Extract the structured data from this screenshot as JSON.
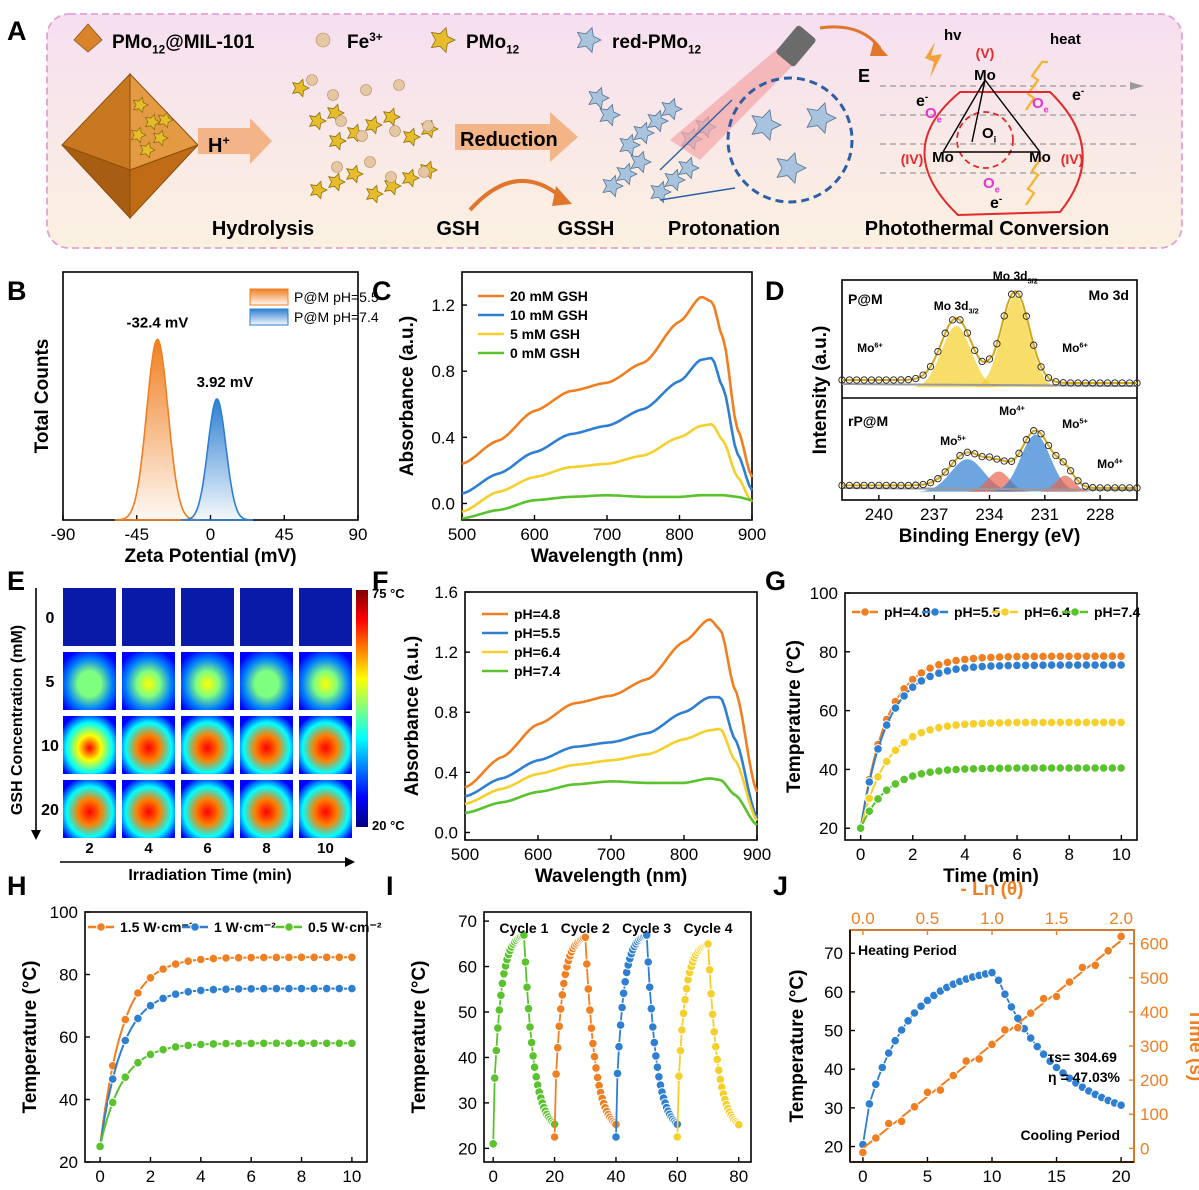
{
  "colors": {
    "orange": "#f07f21",
    "blue": "#2e7fd1",
    "yellow": "#f5cf2a",
    "green": "#59c22d",
    "gray": "#9a9a9a",
    "panel_a_bg": "#fbf1e0",
    "panel_a_border": "#e0a2d4",
    "red": "#e22a2a",
    "magenta": "#e632d2"
  },
  "panel_labels": [
    "A",
    "B",
    "C",
    "D",
    "E",
    "F",
    "G",
    "H",
    "I",
    "J"
  ],
  "panel_a": {
    "legend": [
      {
        "icon": "octahedron-icon",
        "base": "PMo",
        "sub": "12",
        "rest": "@MIL-101"
      },
      {
        "icon": "sphere-icon",
        "base": "Fe",
        "sup": "3+"
      },
      {
        "icon": "cluster-gold-icon",
        "base": "PMo",
        "sub": "12"
      },
      {
        "icon": "cluster-blue-icon",
        "base": "red-PMo",
        "sub": "12"
      }
    ],
    "arrow_h": {
      "base": "H",
      "sup": "+"
    },
    "reduction": "Reduction",
    "hv": "hv",
    "heat": "heat",
    "field": "E",
    "eminus": "e",
    "mo": "Mo",
    "oe": "O",
    "oe_sub": "e",
    "oi": "O",
    "oi_sub": "i",
    "ox5": "(V)",
    "ox4": "(IV)",
    "stages": [
      "Hydrolysis",
      "GSH",
      "GSSH",
      "Protonation",
      "Photothermal Conversion"
    ]
  },
  "chart_data": [
    {
      "panel": "B",
      "type": "area",
      "xlabel": "Zeta Potential (mV)",
      "ylabel": "Total Counts",
      "xlim": [
        -90,
        90
      ],
      "xticks": [
        -90,
        -45,
        0,
        45,
        90
      ],
      "series": [
        {
          "name": "P@M pH=5.5",
          "peak_label": "-32.4 mV",
          "center": -32.4,
          "width": 6.5,
          "height": 1.0,
          "color": "orange"
        },
        {
          "name": "P@M pH=7.4",
          "peak_label": "3.92 mV",
          "center": 3.92,
          "width": 5.5,
          "height": 0.67,
          "color": "blue"
        }
      ]
    },
    {
      "panel": "C",
      "type": "line",
      "xlabel": "Wavelength (nm)",
      "ylabel": "Absorbance (a.u.)",
      "xlim": [
        500,
        900
      ],
      "ylim": [
        -0.1,
        1.4
      ],
      "xticks": [
        500,
        600,
        700,
        800,
        900
      ],
      "yticks": [
        0.0,
        0.4,
        0.8,
        1.2
      ],
      "x": [
        500,
        550,
        600,
        650,
        700,
        750,
        800,
        830,
        845,
        860,
        880,
        900
      ],
      "series": [
        {
          "name": "20 mM GSH",
          "color": "orange",
          "values": [
            0.24,
            0.38,
            0.56,
            0.68,
            0.73,
            0.85,
            1.1,
            1.25,
            1.22,
            1.0,
            0.45,
            0.16
          ]
        },
        {
          "name": "10 mM GSH",
          "color": "blue",
          "values": [
            0.06,
            0.18,
            0.31,
            0.42,
            0.47,
            0.57,
            0.74,
            0.87,
            0.88,
            0.7,
            0.3,
            0.08
          ]
        },
        {
          "name": "5 mM GSH",
          "color": "yellow",
          "values": [
            -0.05,
            0.07,
            0.16,
            0.22,
            0.24,
            0.29,
            0.4,
            0.47,
            0.48,
            0.38,
            0.16,
            0.01
          ]
        },
        {
          "name": "0 mM GSH",
          "color": "green",
          "values": [
            -0.09,
            -0.04,
            0.02,
            0.04,
            0.05,
            0.04,
            0.04,
            0.05,
            0.05,
            0.05,
            0.04,
            0.02
          ]
        }
      ]
    },
    {
      "panel": "D",
      "type": "line",
      "xlabel": "Binding Energy (eV)",
      "ylabel": "Intensity (a.u.)",
      "xlim": [
        242,
        226
      ],
      "xticks": [
        240,
        237,
        234,
        231,
        228
      ],
      "title": "Mo 3d",
      "subpanels": [
        {
          "label": "P@M",
          "peaks": [
            {
              "name": "Mo 3d3/2",
              "center": 235.8,
              "sigma": 0.8,
              "height": 0.62
            },
            {
              "name": "Mo 3d5/2",
              "center": 232.6,
              "sigma": 0.75,
              "height": 0.92
            }
          ],
          "annotations": [
            "Mo6+",
            "Mo6+"
          ]
        },
        {
          "label": "rP@M",
          "peaks": [
            {
              "name": "Mo5+",
              "center": 235.2,
              "sigma": 0.9,
              "height": 0.4
            },
            {
              "name": "Mo4+",
              "center": 233.5,
              "sigma": 0.6,
              "height": 0.25
            },
            {
              "name": "Mo5+",
              "center": 231.5,
              "sigma": 0.8,
              "height": 0.7
            },
            {
              "name": "Mo4+",
              "center": 229.9,
              "sigma": 0.5,
              "height": 0.2
            }
          ],
          "annotations": [
            "Mo5+",
            "Mo4+",
            "Mo5+",
            "Mo4+"
          ]
        }
      ]
    },
    {
      "panel": "E",
      "type": "heatmap",
      "xlabel": "Irradiation Time (min)",
      "ylabel": "GSH Concentration (mM)",
      "x": [
        2,
        4,
        6,
        8,
        10
      ],
      "y": [
        0,
        5,
        10,
        20
      ],
      "scale": [
        "75 °C",
        "20 °C"
      ],
      "intensity": [
        [
          0,
          0,
          0,
          0,
          0
        ],
        [
          0.55,
          0.62,
          0.58,
          0.55,
          0.57
        ],
        [
          0.85,
          0.92,
          0.9,
          0.88,
          0.9
        ],
        [
          0.9,
          0.92,
          0.9,
          0.88,
          0.9
        ]
      ]
    },
    {
      "panel": "F",
      "type": "line",
      "xlabel": "Wavelength (nm)",
      "ylabel": "Absorbance (a.u.)",
      "xlim": [
        500,
        900
      ],
      "ylim": [
        -0.05,
        1.6
      ],
      "xticks": [
        500,
        600,
        700,
        800,
        900
      ],
      "yticks": [
        0.0,
        0.4,
        0.8,
        1.2,
        1.6
      ],
      "x": [
        500,
        550,
        600,
        650,
        700,
        750,
        800,
        835,
        850,
        870,
        900
      ],
      "series": [
        {
          "name": "pH=4.8",
          "color": "orange",
          "values": [
            0.3,
            0.5,
            0.72,
            0.86,
            0.91,
            1.02,
            1.27,
            1.42,
            1.35,
            0.95,
            0.27
          ]
        },
        {
          "name": "pH=5.5",
          "color": "blue",
          "values": [
            0.24,
            0.36,
            0.48,
            0.57,
            0.6,
            0.66,
            0.8,
            0.9,
            0.9,
            0.62,
            0.1
          ]
        },
        {
          "name": "pH=6.4",
          "color": "yellow",
          "values": [
            0.19,
            0.29,
            0.39,
            0.45,
            0.48,
            0.52,
            0.62,
            0.68,
            0.69,
            0.48,
            0.08
          ]
        },
        {
          "name": "pH=7.4",
          "color": "green",
          "values": [
            0.13,
            0.2,
            0.27,
            0.32,
            0.34,
            0.33,
            0.33,
            0.36,
            0.35,
            0.25,
            0.05
          ]
        }
      ]
    },
    {
      "panel": "G",
      "type": "line",
      "xlabel": "Time (min)",
      "ylabel": "Temperature (°C)",
      "xlim": [
        -0.6,
        10.6
      ],
      "ylim": [
        16,
        100
      ],
      "xticks": [
        0,
        2,
        4,
        6,
        8,
        10
      ],
      "yticks": [
        20,
        40,
        60,
        80,
        100
      ],
      "model": "rise",
      "tau": 1.0,
      "start": 20,
      "step": 0.333,
      "series": [
        {
          "name": "pH=4.8",
          "color": "orange",
          "plateau": 78.5
        },
        {
          "name": "pH=5.5",
          "color": "blue",
          "plateau": 75.5
        },
        {
          "name": "pH=6.4",
          "color": "yellow",
          "plateau": 56
        },
        {
          "name": "pH=7.4",
          "color": "green",
          "plateau": 40.5
        }
      ]
    },
    {
      "panel": "H",
      "type": "line",
      "xlabel": "Time (min)",
      "ylabel": "Temperature (°C)",
      "xlim": [
        -0.6,
        10.6
      ],
      "ylim": [
        20,
        100
      ],
      "xticks": [
        0,
        2,
        4,
        6,
        8,
        10
      ],
      "yticks": [
        20,
        40,
        60,
        80,
        100
      ],
      "model": "rise",
      "tau": 0.9,
      "start": 25,
      "step": 0.5,
      "series": [
        {
          "name": "1.5 W·cm⁻²",
          "color": "orange",
          "plateau": 85.5
        },
        {
          "name": "1 W·cm⁻²",
          "color": "blue",
          "plateau": 75.5
        },
        {
          "name": "0.5 W·cm⁻²",
          "color": "green",
          "plateau": 58
        }
      ]
    },
    {
      "panel": "I",
      "type": "line",
      "xlabel": "Time (min)",
      "ylabel": "Temperature (°C)",
      "xlim": [
        -3,
        84
      ],
      "ylim": [
        17,
        72
      ],
      "xticks": [
        0,
        20,
        40,
        60,
        80
      ],
      "yticks": [
        20,
        30,
        40,
        50,
        60,
        70
      ],
      "cycles": [
        {
          "name": "Cycle 1",
          "color": "green",
          "start": 0,
          "peak": 67.5
        },
        {
          "name": "Cycle 2",
          "color": "orange",
          "start": 20,
          "peak": 67
        },
        {
          "name": "Cycle 3",
          "color": "blue",
          "start": 40,
          "peak": 67.5
        },
        {
          "name": "Cycle 4",
          "color": "yellow",
          "start": 60,
          "peak": 65.5
        }
      ]
    },
    {
      "panel": "J",
      "type": "scatter",
      "xlabel": "Time (min)",
      "ylabel": "Temperature (°C)",
      "x2label": "- Ln (θ)",
      "y2label": "Time (s)",
      "xlim": [
        -1,
        21
      ],
      "ylim": [
        16,
        76
      ],
      "x2lim": [
        -0.1,
        2.1
      ],
      "y2lim": [
        -40,
        640
      ],
      "xticks": [
        0,
        5,
        10,
        15,
        20
      ],
      "yticks": [
        20,
        30,
        40,
        50,
        60,
        70
      ],
      "x2ticks": [
        0.0,
        0.5,
        1.0,
        1.5,
        2.0
      ],
      "y2ticks": [
        0,
        100,
        200,
        300,
        400,
        500,
        600
      ],
      "heating": {
        "start": 20.5,
        "peak": 67,
        "tau": 3.3
      },
      "cooling": {
        "end": 25,
        "tau": 5.0
      },
      "fit": {
        "x": [
          0,
          2.0
        ],
        "y": [
          0,
          609
        ]
      },
      "labels": {
        "heating": "Heating Period",
        "cooling": "Cooling Period",
        "tau": "τs= 304.69",
        "eta": "η = 47.03%"
      }
    }
  ]
}
